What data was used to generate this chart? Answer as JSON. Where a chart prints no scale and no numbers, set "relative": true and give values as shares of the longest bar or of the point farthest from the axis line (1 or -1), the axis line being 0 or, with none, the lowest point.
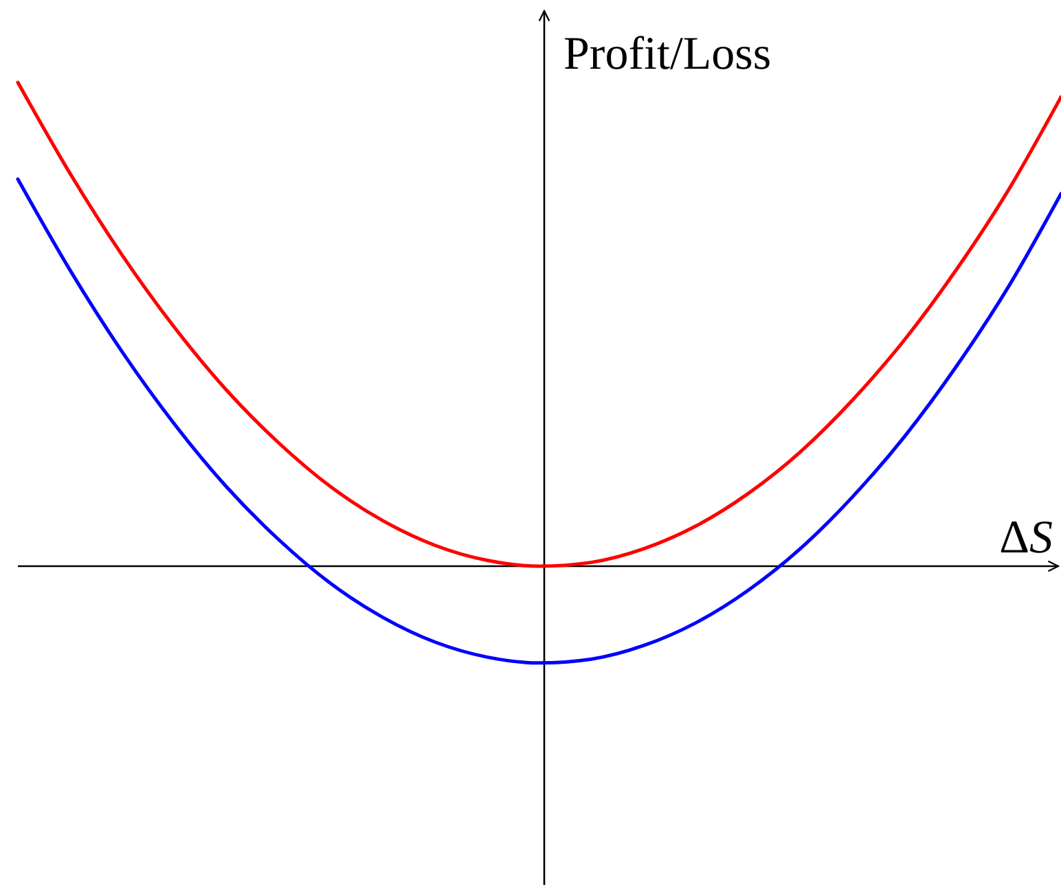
{
  "chart_data": {
    "type": "line",
    "relative": true,
    "xlabel": "ΔS",
    "ylabel": "Profit/Loss",
    "categories": [
      null,
      null,
      null,
      null,
      null,
      null,
      null,
      null,
      null,
      null,
      null,
      null,
      null,
      null,
      null,
      null,
      null,
      null,
      null,
      null,
      null
    ],
    "series": [
      {
        "color": "#ff0000",
        "values": [
          1.0,
          0.812,
          0.643,
          0.494,
          0.364,
          0.255,
          0.164,
          0.094,
          0.043,
          0.012,
          0.0,
          0.008,
          0.036,
          0.083,
          0.15,
          0.236,
          0.343,
          0.468,
          0.614,
          0.779,
          0.97
        ]
      },
      {
        "color": "#0000ff",
        "values": [
          0.8,
          0.612,
          0.443,
          0.294,
          0.164,
          0.055,
          -0.036,
          -0.106,
          -0.157,
          -0.188,
          -0.2,
          -0.192,
          -0.164,
          -0.117,
          -0.05,
          0.036,
          0.143,
          0.268,
          0.414,
          0.579,
          0.77
        ]
      }
    ]
  }
}
